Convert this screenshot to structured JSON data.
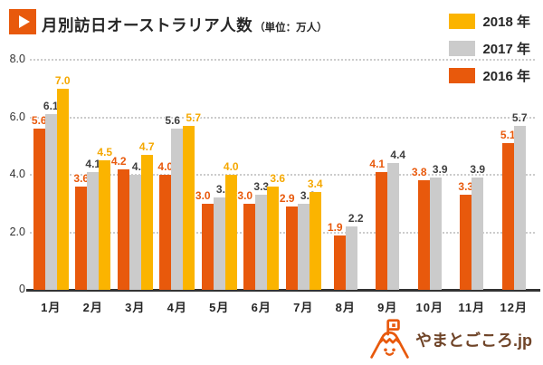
{
  "header": {
    "title": "月別訪日オーストラリア人数",
    "unit": "（単位：万人）"
  },
  "colors": {
    "accent_orange": "#E8590C",
    "text_dark": "#262626",
    "axis_text": "#333333",
    "gridline": "#CCCCCC",
    "baseline": "#333333",
    "logo_orange": "#E8590C",
    "logo_text": "#6F4428"
  },
  "chart_data": {
    "type": "bar",
    "title": "月別訪日オーストラリア人数",
    "unit": "万人",
    "categories": [
      "1月",
      "2月",
      "3月",
      "4月",
      "5月",
      "6月",
      "7月",
      "8月",
      "9月",
      "10月",
      "11月",
      "12月"
    ],
    "series": [
      {
        "name": "2018 年",
        "color": "#FBB400",
        "label_color": "#F5A800",
        "values": [
          7.0,
          4.5,
          4.7,
          5.7,
          4.0,
          3.6,
          3.4,
          null,
          null,
          null,
          null,
          null
        ]
      },
      {
        "name": "2017 年",
        "color": "#CBCBCB",
        "label_color": "#3F3F3F",
        "values": [
          6.1,
          4.1,
          4.0,
          5.6,
          3.2,
          3.3,
          3.0,
          2.2,
          4.4,
          3.9,
          3.9,
          5.7
        ]
      },
      {
        "name": "2016 年",
        "color": "#E8590C",
        "label_color": "#E8590C",
        "values": [
          5.6,
          3.6,
          4.2,
          4.0,
          3.0,
          3.0,
          2.9,
          1.9,
          4.1,
          3.8,
          3.3,
          5.1
        ]
      }
    ],
    "bar_draw_order": "reverse-of-series (2016 left, 2017 middle, 2018 right)",
    "y_axis": {
      "max": 8,
      "ticks": [
        {
          "value": 0,
          "label": "0"
        },
        {
          "value": 2,
          "label": "2.0"
        },
        {
          "value": 4,
          "label": "4.0"
        },
        {
          "value": 6,
          "label": "6.0"
        },
        {
          "value": 8,
          "label": "8.0"
        }
      ]
    },
    "legend_position": "top-right",
    "grid": "dotted-horizontal",
    "value_labels": "above each bar, colored per series"
  },
  "footer": {
    "logo_text": "やまとごころ.jp"
  }
}
